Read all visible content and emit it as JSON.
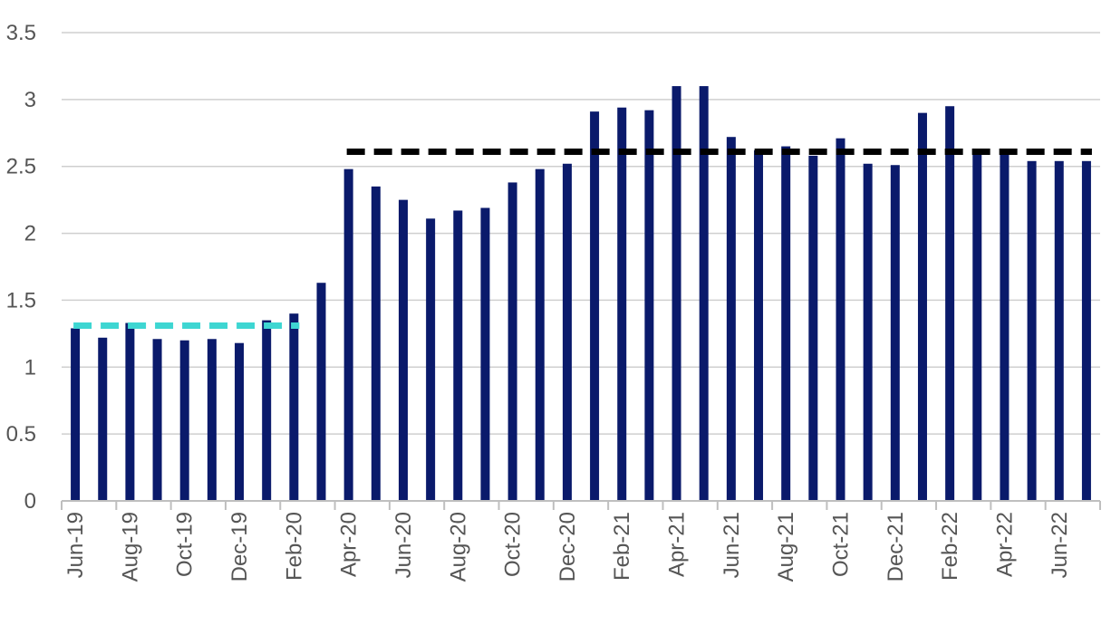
{
  "chart_data": {
    "type": "bar",
    "title": "",
    "xlabel": "",
    "ylabel": "",
    "ylim": [
      0,
      3.5
    ],
    "yticks": [
      "0",
      "0.5",
      "1",
      "1.5",
      "2",
      "2.5",
      "3",
      "3.5"
    ],
    "grid": true,
    "legend": "none",
    "categories": [
      "Jun-19",
      "Jul-19",
      "Aug-19",
      "Sep-19",
      "Oct-19",
      "Nov-19",
      "Dec-19",
      "Jan-20",
      "Feb-20",
      "Mar-20",
      "Apr-20",
      "May-20",
      "Jun-20",
      "Jul-20",
      "Aug-20",
      "Sep-20",
      "Oct-20",
      "Nov-20",
      "Dec-20",
      "Jan-21",
      "Feb-21",
      "Mar-21",
      "Apr-21",
      "May-21",
      "Jun-21",
      "Jul-21",
      "Aug-21",
      "Sep-21",
      "Oct-21",
      "Nov-21",
      "Dec-21",
      "Jan-22",
      "Feb-22",
      "Mar-22",
      "Apr-22",
      "May-22",
      "Jun-22",
      "Jul-22"
    ],
    "shown_labels": [
      "Jun-19",
      "Aug-19",
      "Oct-19",
      "Dec-19",
      "Feb-20",
      "Apr-20",
      "Jun-20",
      "Aug-20",
      "Oct-20",
      "Dec-20",
      "Feb-21",
      "Apr-21",
      "Jun-21",
      "Aug-21",
      "Oct-21",
      "Dec-21",
      "Feb-22",
      "Apr-22",
      "Jun-22"
    ],
    "values": [
      1.29,
      1.22,
      1.33,
      1.21,
      1.2,
      1.21,
      1.18,
      1.35,
      1.4,
      1.63,
      2.48,
      2.35,
      2.25,
      2.11,
      2.17,
      2.19,
      2.38,
      2.48,
      2.52,
      2.91,
      2.94,
      2.92,
      3.1,
      3.1,
      2.72,
      2.62,
      2.65,
      2.58,
      2.71,
      2.52,
      2.51,
      2.9,
      2.95,
      2.6,
      2.6,
      2.54,
      2.54,
      2.54
    ],
    "reference_lines": [
      {
        "value": 1.31,
        "from": "Jun-19",
        "to": "Feb-20",
        "color": "#3ed6d2",
        "style": "dashed"
      },
      {
        "value": 2.61,
        "from": "Apr-20",
        "to": "Jul-22",
        "color": "#000000",
        "style": "dashed"
      }
    ],
    "colors": {
      "bar": "#0a1a6b",
      "grid": "#cfcfcf",
      "axis": "#bfbfbf",
      "text": "#555555"
    }
  }
}
